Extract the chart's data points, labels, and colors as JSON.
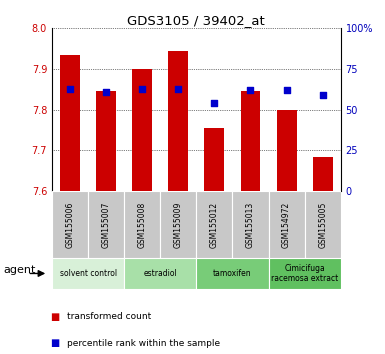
{
  "title": "GDS3105 / 39402_at",
  "samples": [
    "GSM155006",
    "GSM155007",
    "GSM155008",
    "GSM155009",
    "GSM155012",
    "GSM155013",
    "GSM154972",
    "GSM155005"
  ],
  "bar_values": [
    7.935,
    7.845,
    7.9,
    7.945,
    7.755,
    7.845,
    7.8,
    7.685
  ],
  "percentile_values": [
    63,
    61,
    63,
    63,
    54,
    62,
    62,
    59
  ],
  "ylim_left": [
    7.6,
    8.0
  ],
  "ylim_right": [
    0,
    100
  ],
  "yticks_left": [
    7.6,
    7.7,
    7.8,
    7.9,
    8.0
  ],
  "yticks_right": [
    0,
    25,
    50,
    75,
    100
  ],
  "bar_color": "#cc0000",
  "dot_color": "#0000cc",
  "bar_bottom": 7.6,
  "groups": [
    {
      "label": "solvent control",
      "cols": [
        0,
        1
      ],
      "color": "#d8f0d8"
    },
    {
      "label": "estradiol",
      "cols": [
        2,
        3
      ],
      "color": "#a8e0a8"
    },
    {
      "label": "tamoxifen",
      "cols": [
        4,
        5
      ],
      "color": "#78cc78"
    },
    {
      "label": "Cimicifuga\nracemosa extract",
      "cols": [
        6,
        7
      ],
      "color": "#60c060"
    }
  ],
  "xlabel": "agent",
  "legend_items": [
    "transformed count",
    "percentile rank within the sample"
  ],
  "legend_colors": [
    "#cc0000",
    "#0000cc"
  ],
  "tick_label_color_left": "#cc0000",
  "tick_label_color_right": "#0000bb",
  "bar_width": 0.55,
  "dot_size": 25,
  "sample_box_color": "#c8c8c8"
}
